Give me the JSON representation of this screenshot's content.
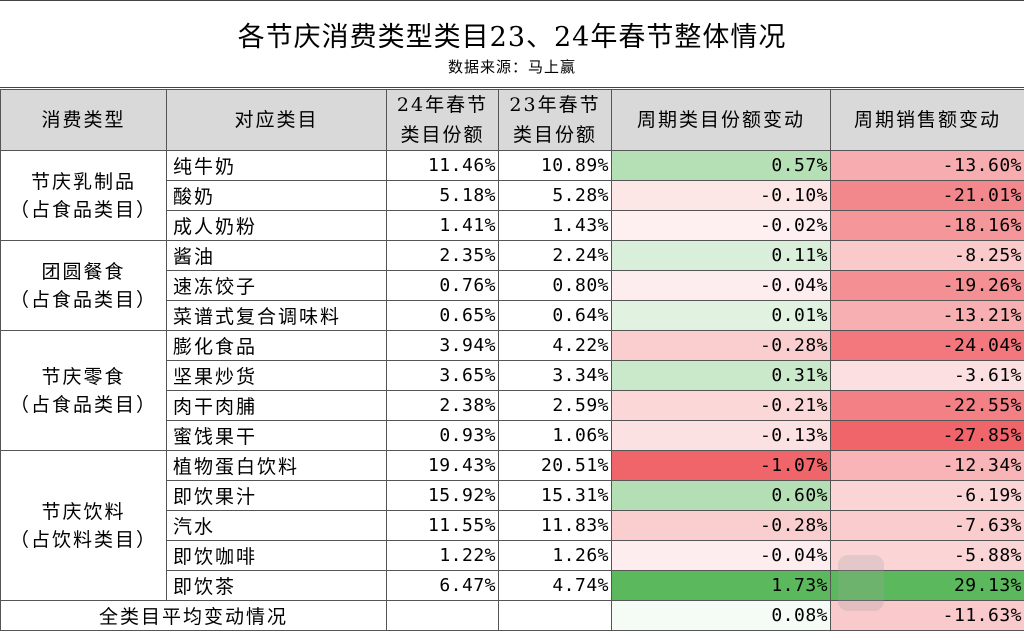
{
  "title": "各节庆消费类型类目23、24年春节整体情况",
  "subtitle": "数据来源：马上赢",
  "headers": {
    "type": "消费类型",
    "category": "对应类目",
    "share24_line1": "24年春节",
    "share24_line2": "类目份额",
    "share23_line1": "23年春节",
    "share23_line2": "类目份额",
    "share_change": "周期类目份额变动",
    "sales_change": "周期销售额变动"
  },
  "groups": [
    {
      "name_line1": "节庆乳制品",
      "name_line2": "（占食品类目）",
      "rows": [
        {
          "item": "纯牛奶",
          "s24": "11.46%",
          "s23": "10.89%",
          "dshare": "0.57%",
          "dsales": "-13.60%",
          "dshare_v": 0.57,
          "dsales_v": -13.6
        },
        {
          "item": "酸奶",
          "s24": "5.18%",
          "s23": "5.28%",
          "dshare": "-0.10%",
          "dsales": "-21.01%",
          "dshare_v": -0.1,
          "dsales_v": -21.01
        },
        {
          "item": "成人奶粉",
          "s24": "1.41%",
          "s23": "1.43%",
          "dshare": "-0.02%",
          "dsales": "-18.16%",
          "dshare_v": -0.02,
          "dsales_v": -18.16
        }
      ]
    },
    {
      "name_line1": "团圆餐食",
      "name_line2": "（占食品类目）",
      "rows": [
        {
          "item": "酱油",
          "s24": "2.35%",
          "s23": "2.24%",
          "dshare": "0.11%",
          "dsales": "-8.25%",
          "dshare_v": 0.11,
          "dsales_v": -8.25
        },
        {
          "item": "速冻饺子",
          "s24": "0.76%",
          "s23": "0.80%",
          "dshare": "-0.04%",
          "dsales": "-19.26%",
          "dshare_v": -0.04,
          "dsales_v": -19.26
        },
        {
          "item": "菜谱式复合调味料",
          "s24": "0.65%",
          "s23": "0.64%",
          "dshare": "0.01%",
          "dsales": "-13.21%",
          "dshare_v": 0.01,
          "dsales_v": -13.21
        }
      ]
    },
    {
      "name_line1": "节庆零食",
      "name_line2": "（占食品类目）",
      "rows": [
        {
          "item": "膨化食品",
          "s24": "3.94%",
          "s23": "4.22%",
          "dshare": "-0.28%",
          "dsales": "-24.04%",
          "dshare_v": -0.28,
          "dsales_v": -24.04
        },
        {
          "item": "坚果炒货",
          "s24": "3.65%",
          "s23": "3.34%",
          "dshare": "0.31%",
          "dsales": "-3.61%",
          "dshare_v": 0.31,
          "dsales_v": -3.61
        },
        {
          "item": "肉干肉脯",
          "s24": "2.38%",
          "s23": "2.59%",
          "dshare": "-0.21%",
          "dsales": "-22.55%",
          "dshare_v": -0.21,
          "dsales_v": -22.55
        },
        {
          "item": "蜜饯果干",
          "s24": "0.93%",
          "s23": "1.06%",
          "dshare": "-0.13%",
          "dsales": "-27.85%",
          "dshare_v": -0.13,
          "dsales_v": -27.85
        }
      ]
    },
    {
      "name_line1": "节庆饮料",
      "name_line2": "（占饮料类目）",
      "rows": [
        {
          "item": "植物蛋白饮料",
          "s24": "19.43%",
          "s23": "20.51%",
          "dshare": "-1.07%",
          "dsales": "-12.34%",
          "dshare_v": -1.07,
          "dsales_v": -12.34
        },
        {
          "item": "即饮果汁",
          "s24": "15.92%",
          "s23": "15.31%",
          "dshare": "0.60%",
          "dsales": "-6.19%",
          "dshare_v": 0.6,
          "dsales_v": -6.19
        },
        {
          "item": "汽水",
          "s24": "11.55%",
          "s23": "11.83%",
          "dshare": "-0.28%",
          "dsales": "-7.63%",
          "dshare_v": -0.28,
          "dsales_v": -7.63
        },
        {
          "item": "即饮咖啡",
          "s24": "1.22%",
          "s23": "1.26%",
          "dshare": "-0.04%",
          "dsales": "-5.88%",
          "dshare_v": -0.04,
          "dsales_v": -5.88
        },
        {
          "item": "即饮茶",
          "s24": "6.47%",
          "s23": "4.74%",
          "dshare": "1.73%",
          "dsales": "29.13%",
          "dshare_v": 1.73,
          "dsales_v": 29.13
        }
      ]
    }
  ],
  "footer": {
    "label": "全类目平均变动情况",
    "dshare": "0.08%",
    "dsales": "-11.63%"
  },
  "colors": {
    "header_bg": "#d9d9d9",
    "positive": "#5cb85c",
    "negative": "#f0656a",
    "neutral": "#ffffff"
  }
}
